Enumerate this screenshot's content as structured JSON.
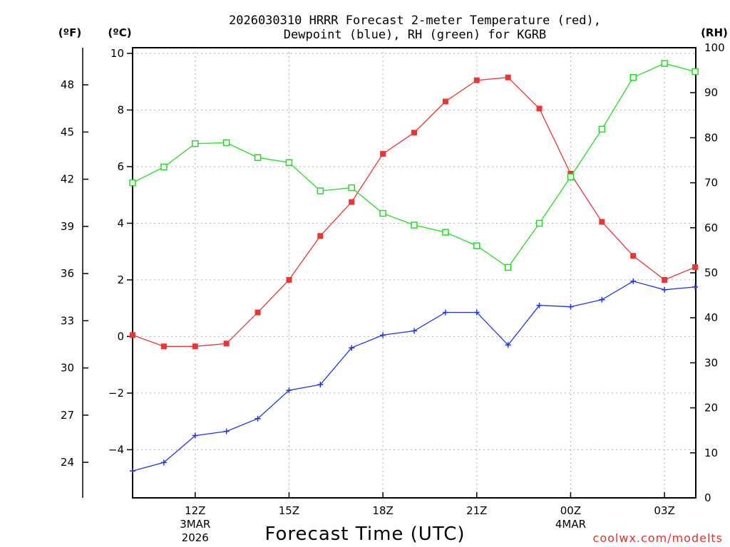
{
  "chart_data": {
    "type": "line",
    "title_line1": "2026030310 HRRR Forecast 2-meter Temperature (red),",
    "title_line2": "Dewpoint (blue), RH (green) for KGRB",
    "xlabel": "Forecast Time (UTC)",
    "credit": "coolwx.com/modelts",
    "unit_left_f": "(ºF)",
    "unit_left_c": "(ºC)",
    "unit_right": "(RH)",
    "hours": [
      10,
      11,
      12,
      13,
      14,
      15,
      16,
      17,
      18,
      19,
      20,
      21,
      22,
      23,
      24,
      25,
      26,
      27,
      27.98
    ],
    "xlim": [
      10,
      28
    ],
    "x_ticks": [
      {
        "hour": 12,
        "label": "12Z",
        "sub1": "3MAR",
        "sub2": "2026"
      },
      {
        "hour": 15,
        "label": "15Z",
        "sub1": "",
        "sub2": ""
      },
      {
        "hour": 18,
        "label": "18Z",
        "sub1": "",
        "sub2": ""
      },
      {
        "hour": 21,
        "label": "21Z",
        "sub1": "",
        "sub2": ""
      },
      {
        "hour": 24,
        "label": "00Z",
        "sub1": "4MAR",
        "sub2": ""
      },
      {
        "hour": 27,
        "label": "03Z",
        "sub1": "",
        "sub2": ""
      }
    ],
    "celsius_axis": {
      "ylim": [
        -5.7,
        10.2
      ],
      "ticks": [
        "10",
        "8",
        "6",
        "4",
        "2",
        "0",
        "−2",
        "−4"
      ],
      "tick_values": [
        10,
        8,
        6,
        4,
        2,
        0,
        -2,
        -4
      ]
    },
    "fahrenheit_axis": {
      "ticks": [
        "48",
        "45",
        "42",
        "39",
        "36",
        "33",
        "30",
        "27",
        "24"
      ],
      "tick_values": [
        48,
        45,
        42,
        39,
        36,
        33,
        30,
        27,
        24
      ]
    },
    "rh_axis": {
      "ylim": [
        0,
        100
      ],
      "ticks": [
        "100",
        "90",
        "80",
        "70",
        "60",
        "50",
        "40",
        "30",
        "20",
        "10",
        "0"
      ],
      "tick_values": [
        100,
        90,
        80,
        70,
        60,
        50,
        40,
        30,
        20,
        10,
        0
      ]
    },
    "series": [
      {
        "name": "Temperature",
        "units": "C",
        "color": "#ee3333",
        "marker": "filled-square",
        "values": [
          0.05,
          -0.35,
          -0.35,
          -0.25,
          0.85,
          2.0,
          3.55,
          4.75,
          6.45,
          7.2,
          8.3,
          9.05,
          9.15,
          8.05,
          5.75,
          4.05,
          2.85,
          2.0,
          2.45
        ]
      },
      {
        "name": "Dewpoint",
        "units": "C",
        "color": "#2233ee",
        "marker": "plus",
        "values": [
          -4.75,
          -4.45,
          -3.5,
          -3.35,
          -2.9,
          -1.9,
          -1.7,
          -0.4,
          0.05,
          0.2,
          0.85,
          0.85,
          -0.3,
          1.1,
          1.05,
          1.3,
          1.95,
          1.65,
          1.75
        ]
      },
      {
        "name": "RH",
        "units": "%",
        "color": "#22dd22",
        "marker": "open-square",
        "values": [
          70.0,
          73.5,
          78.7,
          78.9,
          75.6,
          74.5,
          68.2,
          68.9,
          63.2,
          60.6,
          59.0,
          56.0,
          51.2,
          61.0,
          71.3,
          81.9,
          93.4,
          96.5,
          94.7
        ]
      }
    ]
  }
}
